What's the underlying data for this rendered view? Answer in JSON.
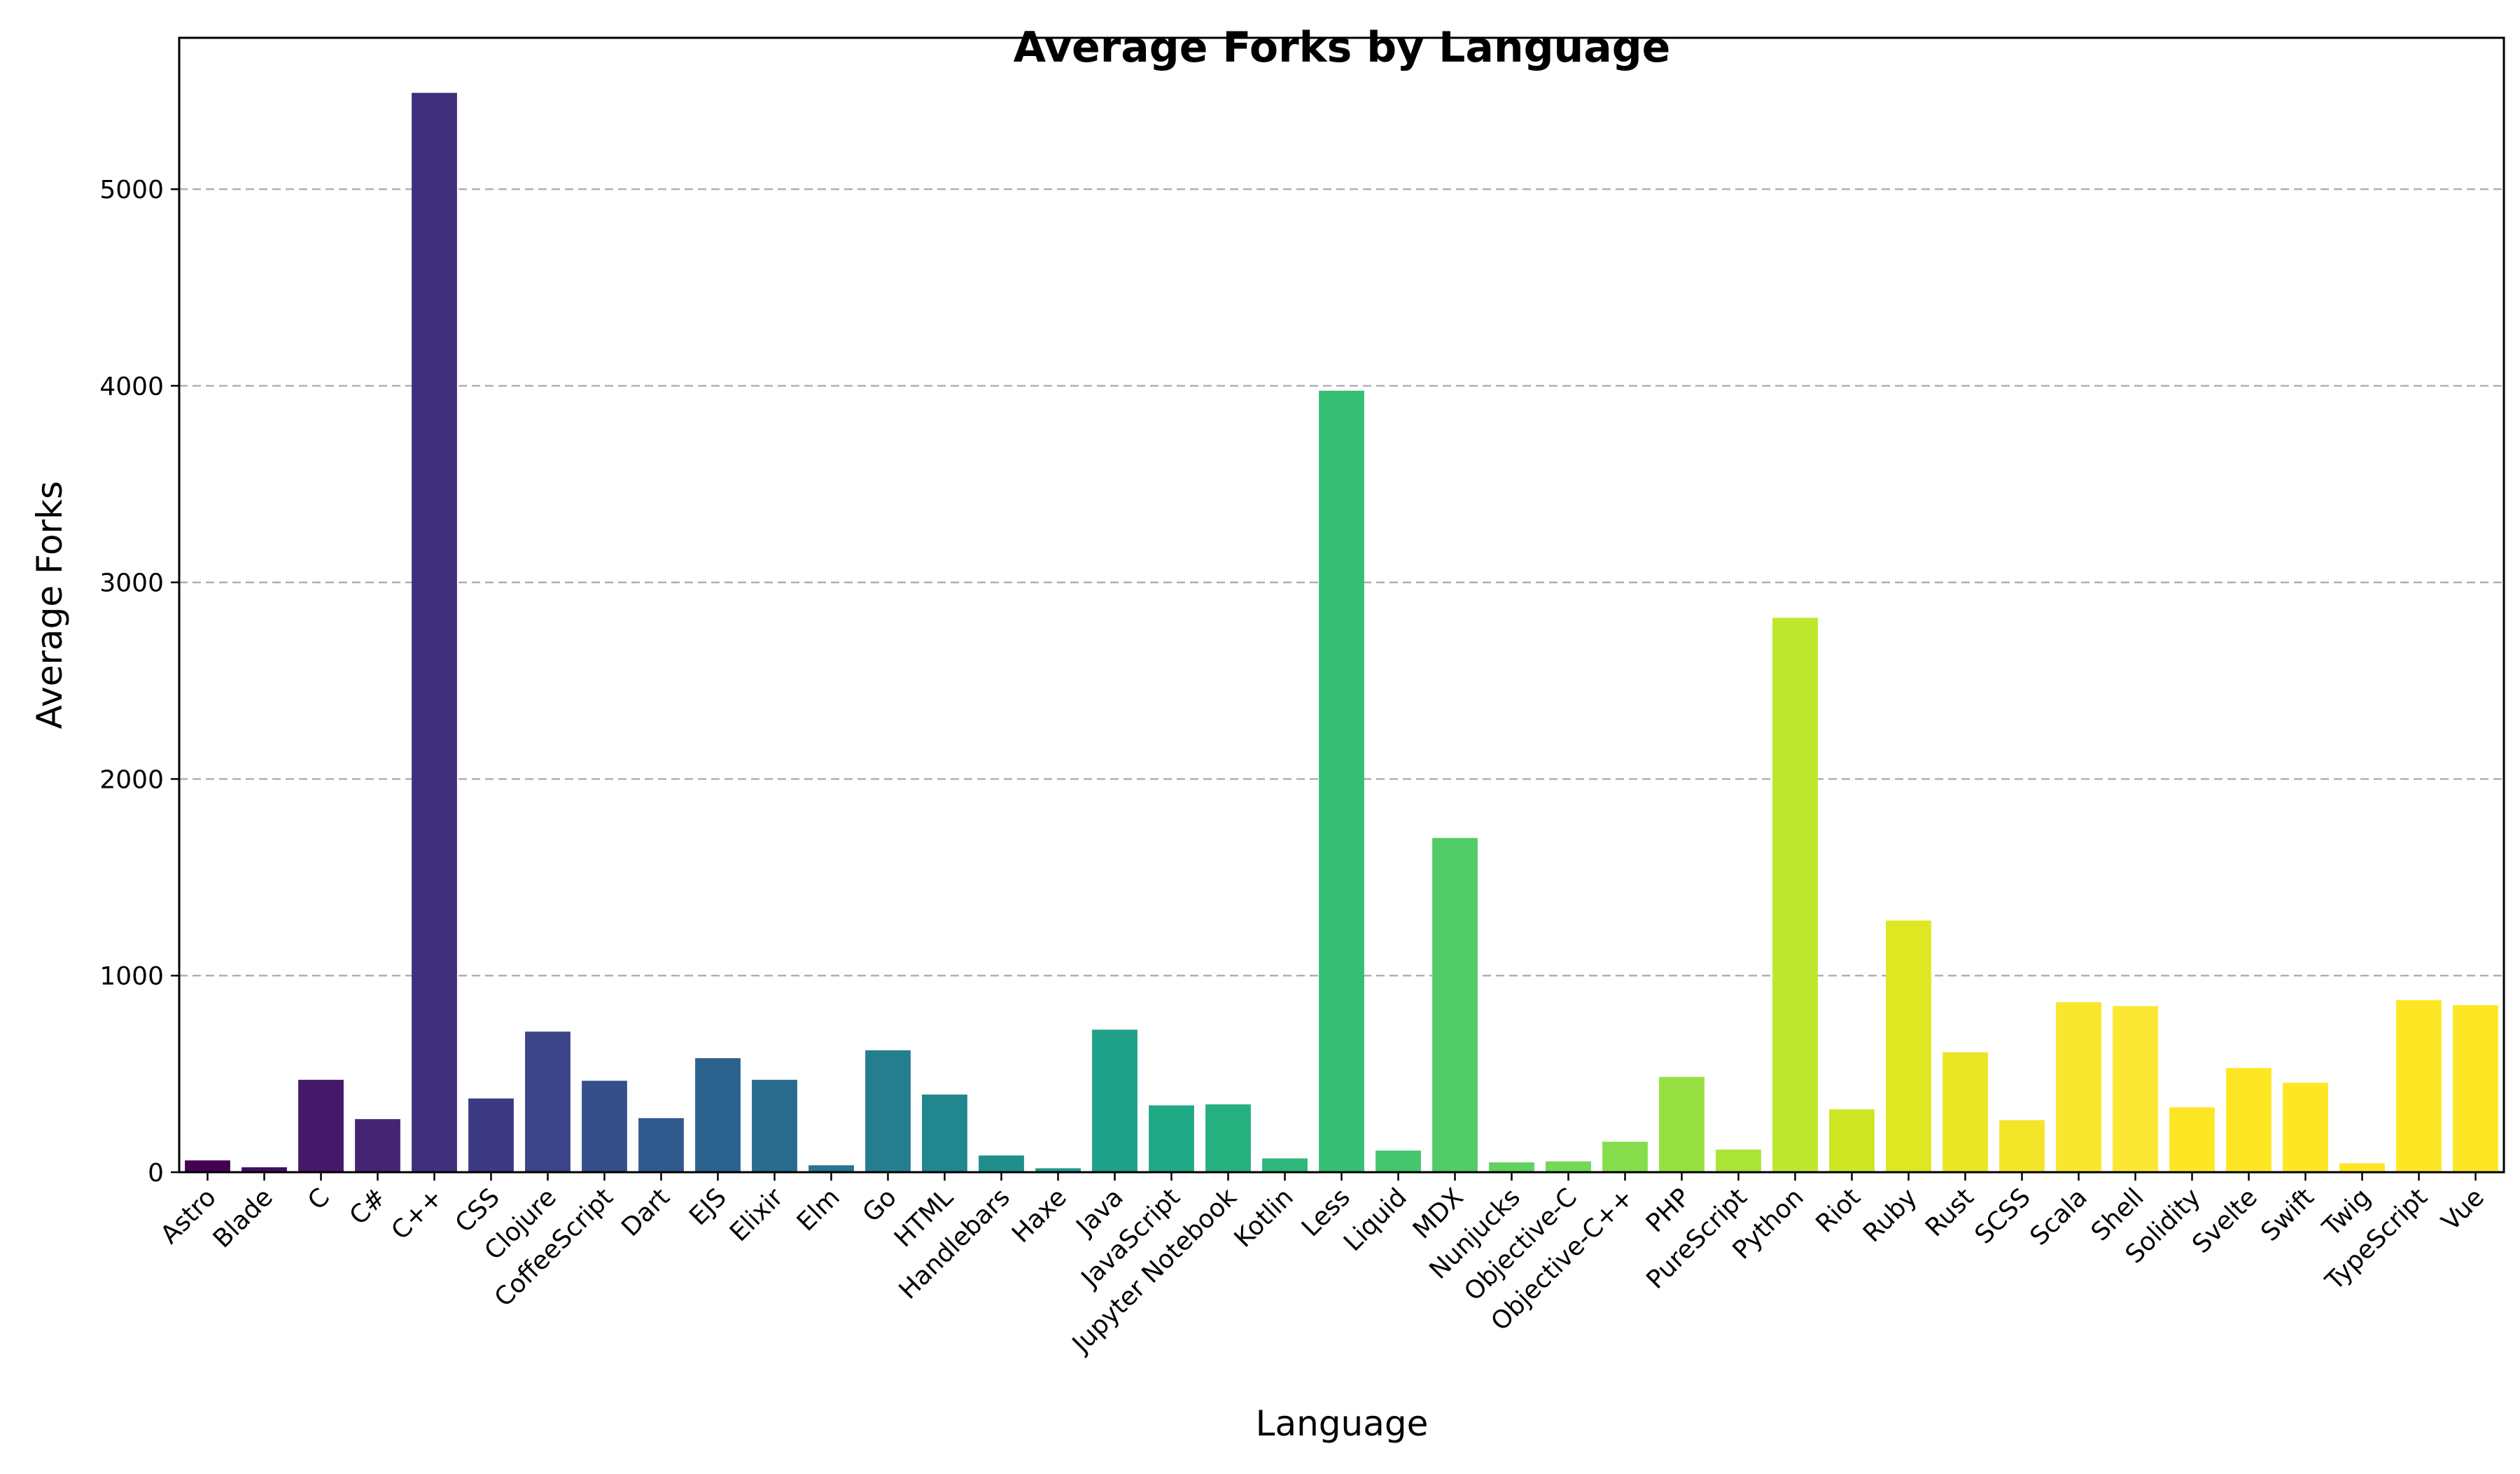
{
  "chart_data": {
    "type": "bar",
    "title": "Average Forks by Language",
    "xlabel": "Language",
    "ylabel": "Average Forks",
    "ylim": [
      0,
      5770
    ],
    "yticks": [
      0,
      1000,
      2000,
      3000,
      4000,
      5000
    ],
    "grid": "y-dashed",
    "palette": "viridis",
    "categories": [
      "Astro",
      "Blade",
      "C",
      "C#",
      "C++",
      "CSS",
      "Clojure",
      "CoffeeScript",
      "Dart",
      "EJS",
      "Elixir",
      "Elm",
      "Go",
      "HTML",
      "Handlebars",
      "Haxe",
      "Java",
      "JavaScript",
      "Jupyter Notebook",
      "Kotlin",
      "Less",
      "Liquid",
      "MDX",
      "Nunjucks",
      "Objective-C",
      "Objective-C++",
      "PHP",
      "PureScript",
      "Python",
      "Riot",
      "Ruby",
      "Rust",
      "SCSS",
      "Scala",
      "Shell",
      "Solidity",
      "Svelte",
      "Swift",
      "Twig",
      "TypeScript",
      "Vue"
    ],
    "values": [
      60,
      25,
      470,
      270,
      5490,
      375,
      715,
      465,
      275,
      580,
      470,
      35,
      620,
      395,
      85,
      20,
      725,
      340,
      345,
      70,
      3975,
      110,
      1700,
      50,
      55,
      155,
      485,
      115,
      2820,
      320,
      1280,
      610,
      265,
      865,
      845,
      330,
      530,
      455,
      45,
      875,
      850
    ],
    "colors": [
      "#440154",
      "#440e5f",
      "#45196a",
      "#442574",
      "#402f7c",
      "#3d3a83",
      "#3a4487",
      "#354f8b",
      "#30598d",
      "#2c628e",
      "#296c8e",
      "#27758e",
      "#257e8e",
      "#22868e",
      "#208f8c",
      "#1f988b",
      "#1fa088",
      "#21a885",
      "#26b080",
      "#2cb77b",
      "#37bf75",
      "#44c66e",
      "#51cc67",
      "#61d25f",
      "#72d856",
      "#85dd4b",
      "#97e041",
      "#aae437",
      "#bde72c",
      "#cde724",
      "#dde722",
      "#ebe625",
      "#f3e629",
      "#f8e72d",
      "#fbe832",
      "#fde725",
      "#fde725",
      "#fde725",
      "#fde725",
      "#fde725",
      "#fde725"
    ]
  }
}
